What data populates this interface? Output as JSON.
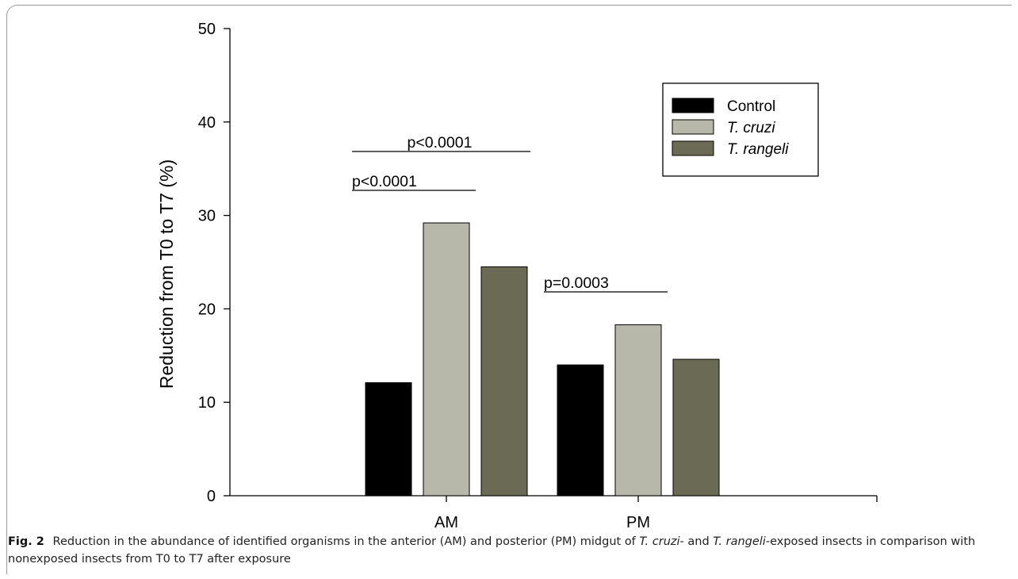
{
  "chart_data": {
    "type": "bar",
    "ylabel": "Reduction from T0 to T7 (%)",
    "ylim": [
      0,
      50
    ],
    "yticks": [
      0,
      10,
      20,
      30,
      40,
      50
    ],
    "categories": [
      "AM",
      "PM"
    ],
    "series": [
      {
        "name": "Control",
        "values": [
          12.1,
          14.0
        ],
        "color": "#000000"
      },
      {
        "name": "T. cruzi",
        "values": [
          29.2,
          18.3
        ],
        "color": "#b7b7aa"
      },
      {
        "name": "T. rangeli",
        "values": [
          24.5,
          14.6
        ],
        "color": "#6b6b55"
      }
    ],
    "annotations": [
      {
        "text": "p<0.0001",
        "group": "AM",
        "from_series": 0,
        "to_series": 2
      },
      {
        "text": "p<0.0001",
        "group": "AM",
        "from_series": 0,
        "to_series": 1
      },
      {
        "text": "p=0.0003",
        "group": "PM",
        "from_series": 0,
        "to_series": 1
      }
    ],
    "legend_position": "top-right",
    "grid": false
  },
  "caption": {
    "label": "Fig. 2",
    "parts": [
      {
        "text": "Reduction in the abundance of identified organisms in the anterior (AM) and posterior (PM) midgut of ",
        "italic": false
      },
      {
        "text": "T. cruzi",
        "italic": true
      },
      {
        "text": "- and ",
        "italic": false
      },
      {
        "text": "T. rangeli",
        "italic": true
      },
      {
        "text": "-exposed insects in comparison with nonexposed insects from T0 to T7 after exposure",
        "italic": false
      }
    ]
  }
}
